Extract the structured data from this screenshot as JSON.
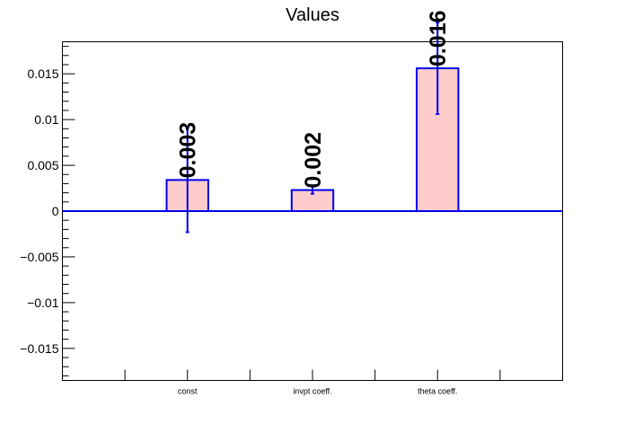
{
  "chart_data": {
    "type": "bar",
    "title": "Values",
    "xlabel": "",
    "ylabel": "",
    "categories": [
      "const",
      "invpt coeff.",
      "theta coeff."
    ],
    "values": [
      0.0034,
      0.0023,
      0.0156
    ],
    "errors": [
      0.0057,
      0.0004,
      0.005
    ],
    "data_labels": [
      "0.003",
      "0.002",
      "0.016"
    ],
    "ylim": [
      -0.0185,
      0.0185
    ],
    "yticks": [
      -0.015,
      -0.01,
      -0.005,
      0,
      0.005,
      0.01,
      0.015
    ],
    "ytick_labels": [
      "−0.015",
      "−0.01",
      "−0.005",
      "0",
      "0.005",
      "0.01",
      "0.015"
    ],
    "grid": false,
    "legend": "none",
    "colors": {
      "bar_fill": "#ffcccc",
      "bar_edge": "#0000ee",
      "axis": "#000000"
    }
  }
}
